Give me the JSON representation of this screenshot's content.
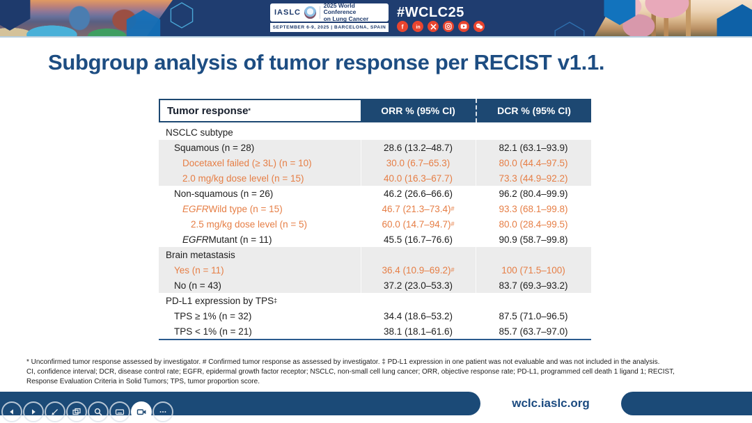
{
  "banner": {
    "logo": {
      "iaslc": "IASLC",
      "conf1": "2025 World Conference",
      "conf2": "on Lung Cancer",
      "date_location": "SEPTEMBER 6-9, 2025  |  BARCELONA, SPAIN"
    },
    "hashtag": "#WCLC25",
    "social_icons": [
      {
        "name": "facebook",
        "glyph": "f"
      },
      {
        "name": "linkedin",
        "glyph": "in"
      },
      {
        "name": "x-twitter",
        "glyph": "x"
      },
      {
        "name": "instagram",
        "glyph": "insta"
      },
      {
        "name": "youtube",
        "glyph": "play"
      },
      {
        "name": "wechat",
        "glyph": "chat"
      }
    ]
  },
  "title": "Subgroup analysis of tumor response per RECIST v1.1.",
  "table": {
    "header": {
      "col1": "Tumor response",
      "col1_sup": "*",
      "col2": "ORR % (95% CI)",
      "col3": "DCR % (95% CI)"
    },
    "rows": [
      {
        "section": true,
        "shaded": false,
        "indent": 0,
        "label": "NSCLC subtype",
        "orr": "",
        "dcr": ""
      },
      {
        "section": false,
        "shaded": true,
        "indent": 1,
        "orange": false,
        "label": "Squamous (n = 28)",
        "orr": "28.6 (13.2–48.7)",
        "dcr": "82.1 (63.1–93.9)"
      },
      {
        "section": false,
        "shaded": true,
        "indent": 2,
        "orange": true,
        "label": "Docetaxel failed (≥ 3L) (n = 10)",
        "orr": "30.0 (6.7–65.3)",
        "dcr": "80.0 (44.4–97.5)"
      },
      {
        "section": false,
        "shaded": true,
        "indent": 2,
        "orange": true,
        "label": "2.0 mg/kg dose level (n = 15)",
        "orr": "40.0 (16.3–67.7)",
        "dcr": "73.3 (44.9–92.2)"
      },
      {
        "section": false,
        "shaded": false,
        "indent": 1,
        "orange": false,
        "label": "Non-squamous (n = 26)",
        "orr": "46.2 (26.6–66.6)",
        "dcr": "96.2 (80.4–99.9)"
      },
      {
        "section": false,
        "shaded": false,
        "indent": 2,
        "orange": true,
        "label_italic": "EGFR",
        "label": " Wild type (n = 15)",
        "orr": "46.7 (21.3–73.4)",
        "orr_sup": "#",
        "dcr": "93.3 (68.1–99.8)"
      },
      {
        "section": false,
        "shaded": false,
        "indent": 3,
        "orange": true,
        "label": "2.5 mg/kg dose level (n = 5)",
        "orr": "60.0 (14.7–94.7)",
        "orr_sup": "#",
        "dcr": "80.0 (28.4–99.5)"
      },
      {
        "section": false,
        "shaded": false,
        "indent": 2,
        "orange": false,
        "label_italic": "EGFR",
        "label": " Mutant (n = 11)",
        "orr": "45.5 (16.7–76.6)",
        "dcr": "90.9 (58.7–99.8)"
      },
      {
        "section": true,
        "shaded": true,
        "indent": 0,
        "label": "Brain metastasis",
        "orr": "",
        "dcr": ""
      },
      {
        "section": false,
        "shaded": true,
        "indent": 1,
        "orange": true,
        "label": "Yes (n = 11)",
        "orr": "36.4 (10.9–69.2)",
        "orr_sup": "#",
        "dcr": "100 (71.5–100)"
      },
      {
        "section": false,
        "shaded": true,
        "indent": 1,
        "orange": false,
        "label": "No (n = 43)",
        "orr": "37.2 (23.0–53.3)",
        "dcr": "83.7 (69.3–93.2)"
      },
      {
        "section": true,
        "shaded": false,
        "indent": 0,
        "label": "PD-L1 expression by TPS",
        "label_sup": "‡",
        "orr": "",
        "dcr": ""
      },
      {
        "section": false,
        "shaded": false,
        "indent": 1,
        "orange": false,
        "label": "TPS ≥ 1% (n = 32)",
        "orr": "34.4 (18.6–53.2)",
        "dcr": "87.5 (71.0–96.5)"
      },
      {
        "section": false,
        "shaded": false,
        "indent": 1,
        "orange": false,
        "label": "TPS < 1% (n = 21)",
        "orr": "38.1 (18.1–61.6)",
        "dcr": "85.7 (63.7–97.0)"
      }
    ]
  },
  "footnotes": {
    "line1": "* Unconfirmed tumor response assessed by investigator.  # Confirmed tumor response as assessed by investigator.  ‡ PD-L1 expression in one patient was not evaluable and was not included in the analysis.",
    "line2": "CI, confidence interval; DCR, disease control rate; EGFR, epidermal growth factor receptor; NSCLC, non-small cell lung cancer; ORR, objective response rate; PD-L1, programmed cell death 1 ligand 1; RECIST,",
    "line3": "Response Evaluation Criteria in Solid Tumors; TPS, tumor proportion score."
  },
  "footer": {
    "url": "wclc.iaslc.org"
  },
  "toolbar": [
    {
      "name": "previous-slide",
      "icon": "arrow-left",
      "active": false
    },
    {
      "name": "next-slide",
      "icon": "arrow-right",
      "active": false
    },
    {
      "name": "annotate-pen",
      "icon": "pen",
      "active": false
    },
    {
      "name": "slide-overview",
      "icon": "slides",
      "active": false
    },
    {
      "name": "zoom",
      "icon": "magnifier",
      "active": false
    },
    {
      "name": "keyboard",
      "icon": "keyboard",
      "active": false
    },
    {
      "name": "camera",
      "icon": "camera",
      "active": true
    },
    {
      "name": "more-options",
      "icon": "ellipsis",
      "active": false
    }
  ],
  "colors": {
    "banner_navy": "#1f3d70",
    "table_header_navy": "#1d4872",
    "title_blue": "#1d4d82",
    "highlight_orange": "#e67e45",
    "shaded_row_gray": "#ececec",
    "social_red": "#e8452f"
  }
}
